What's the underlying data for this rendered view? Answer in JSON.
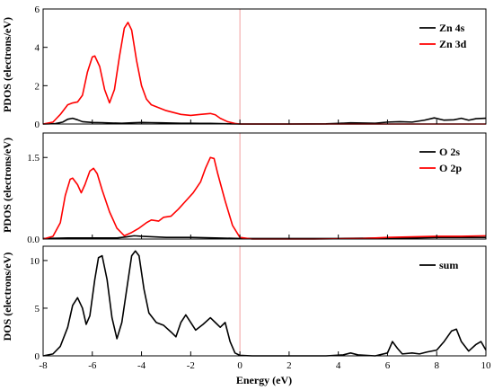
{
  "chart_data": {
    "type": "line",
    "xlabel": "Energy (eV)",
    "xlim": [
      -8,
      10
    ],
    "x_ticks": [
      "-8",
      "-6",
      "-4",
      "-2",
      "0",
      "2",
      "4",
      "6",
      "8",
      "10"
    ],
    "fermi_level": 0,
    "panels": [
      {
        "ylabel": "PDOS (electrons/eV)",
        "ylim": [
          0,
          6
        ],
        "y_ticks": [
          "0",
          "2",
          "4",
          "6"
        ],
        "legend_position": "top-right",
        "series": [
          {
            "name": "Zn 4s",
            "color": "#000000",
            "points": [
              [
                -8,
                0
              ],
              [
                -7.5,
                0.02
              ],
              [
                -7.2,
                0.1
              ],
              [
                -7.0,
                0.25
              ],
              [
                -6.8,
                0.3
              ],
              [
                -6.6,
                0.22
              ],
              [
                -6.4,
                0.12
              ],
              [
                -6.0,
                0.08
              ],
              [
                -5.6,
                0.07
              ],
              [
                -5.2,
                0.05
              ],
              [
                -4.8,
                0.04
              ],
              [
                -4.4,
                0.06
              ],
              [
                -4.0,
                0.08
              ],
              [
                -3.6,
                0.07
              ],
              [
                -3.2,
                0.06
              ],
              [
                -2.8,
                0.05
              ],
              [
                -2.4,
                0.04
              ],
              [
                -2.0,
                0.04
              ],
              [
                -1.6,
                0.03
              ],
              [
                -1.2,
                0.03
              ],
              [
                -0.8,
                0.02
              ],
              [
                -0.4,
                0.01
              ],
              [
                0,
                0
              ],
              [
                2,
                0
              ],
              [
                3.5,
                0.01
              ],
              [
                4.0,
                0.03
              ],
              [
                4.5,
                0.06
              ],
              [
                5.0,
                0.05
              ],
              [
                5.5,
                0.04
              ],
              [
                6.0,
                0.1
              ],
              [
                6.5,
                0.12
              ],
              [
                7.0,
                0.1
              ],
              [
                7.5,
                0.2
              ],
              [
                7.9,
                0.32
              ],
              [
                8.3,
                0.2
              ],
              [
                8.7,
                0.22
              ],
              [
                9.0,
                0.3
              ],
              [
                9.3,
                0.2
              ],
              [
                9.6,
                0.28
              ],
              [
                10,
                0.3
              ]
            ]
          },
          {
            "name": "Zn 3d",
            "color": "#ff0000",
            "points": [
              [
                -8,
                0
              ],
              [
                -7.6,
                0.1
              ],
              [
                -7.3,
                0.5
              ],
              [
                -7.0,
                1.0
              ],
              [
                -6.8,
                1.1
              ],
              [
                -6.6,
                1.15
              ],
              [
                -6.4,
                1.5
              ],
              [
                -6.2,
                2.7
              ],
              [
                -6.0,
                3.5
              ],
              [
                -5.9,
                3.55
              ],
              [
                -5.7,
                3.0
              ],
              [
                -5.5,
                1.8
              ],
              [
                -5.3,
                1.1
              ],
              [
                -5.1,
                1.8
              ],
              [
                -4.9,
                3.5
              ],
              [
                -4.7,
                5.0
              ],
              [
                -4.55,
                5.3
              ],
              [
                -4.4,
                4.9
              ],
              [
                -4.2,
                3.3
              ],
              [
                -4.0,
                2.0
              ],
              [
                -3.8,
                1.3
              ],
              [
                -3.6,
                1.0
              ],
              [
                -3.3,
                0.85
              ],
              [
                -3.0,
                0.7
              ],
              [
                -2.7,
                0.6
              ],
              [
                -2.4,
                0.5
              ],
              [
                -2.0,
                0.45
              ],
              [
                -1.6,
                0.5
              ],
              [
                -1.2,
                0.55
              ],
              [
                -1.0,
                0.48
              ],
              [
                -0.8,
                0.3
              ],
              [
                -0.5,
                0.12
              ],
              [
                -0.2,
                0.03
              ],
              [
                0,
                0
              ],
              [
                10,
                0
              ]
            ]
          }
        ]
      },
      {
        "ylabel": "PDOS (electrons/eV)",
        "ylim": [
          0,
          1.95
        ],
        "y_ticks": [
          "0.0",
          "1.5"
        ],
        "legend_position": "top-right",
        "series": [
          {
            "name": "O 2s",
            "color": "#000000",
            "points": [
              [
                -8,
                0.01
              ],
              [
                -7.0,
                0.02
              ],
              [
                -6.0,
                0.02
              ],
              [
                -5.0,
                0.02
              ],
              [
                -4.6,
                0.04
              ],
              [
                -4.3,
                0.06
              ],
              [
                -4.0,
                0.05
              ],
              [
                -3.5,
                0.04
              ],
              [
                -3.0,
                0.03
              ],
              [
                -2.0,
                0.03
              ],
              [
                -1.0,
                0.02
              ],
              [
                0,
                0.01
              ],
              [
                2,
                0.01
              ],
              [
                4,
                0.01
              ],
              [
                6,
                0.02
              ],
              [
                7,
                0.02
              ],
              [
                8,
                0.03
              ],
              [
                9,
                0.03
              ],
              [
                10,
                0.03
              ]
            ]
          },
          {
            "name": "O 2p",
            "color": "#ff0000",
            "points": [
              [
                -8,
                0
              ],
              [
                -7.6,
                0.05
              ],
              [
                -7.3,
                0.3
              ],
              [
                -7.1,
                0.8
              ],
              [
                -6.9,
                1.1
              ],
              [
                -6.8,
                1.12
              ],
              [
                -6.6,
                1.0
              ],
              [
                -6.45,
                0.85
              ],
              [
                -6.3,
                1.0
              ],
              [
                -6.1,
                1.25
              ],
              [
                -5.95,
                1.3
              ],
              [
                -5.8,
                1.2
              ],
              [
                -5.6,
                0.9
              ],
              [
                -5.3,
                0.5
              ],
              [
                -5.0,
                0.2
              ],
              [
                -4.7,
                0.06
              ],
              [
                -4.4,
                0.12
              ],
              [
                -4.1,
                0.2
              ],
              [
                -3.8,
                0.3
              ],
              [
                -3.6,
                0.35
              ],
              [
                -3.3,
                0.33
              ],
              [
                -3.1,
                0.4
              ],
              [
                -2.8,
                0.42
              ],
              [
                -2.5,
                0.55
              ],
              [
                -2.2,
                0.7
              ],
              [
                -1.9,
                0.85
              ],
              [
                -1.6,
                1.05
              ],
              [
                -1.4,
                1.3
              ],
              [
                -1.2,
                1.5
              ],
              [
                -1.05,
                1.48
              ],
              [
                -0.9,
                1.2
              ],
              [
                -0.6,
                0.7
              ],
              [
                -0.3,
                0.25
              ],
              [
                0,
                0.03
              ],
              [
                0.5,
                0
              ],
              [
                3,
                0
              ],
              [
                5,
                0.01
              ],
              [
                6,
                0.03
              ],
              [
                7,
                0.04
              ],
              [
                8,
                0.05
              ],
              [
                9,
                0.05
              ],
              [
                10,
                0.06
              ]
            ]
          }
        ]
      },
      {
        "ylabel": "DOS (electrons/eV)",
        "ylim": [
          0,
          11.5
        ],
        "y_ticks": [
          "0",
          "5",
          "10"
        ],
        "legend_position": "top-right",
        "series": [
          {
            "name": "sum",
            "color": "#000000",
            "points": [
              [
                -8,
                0
              ],
              [
                -7.6,
                0.2
              ],
              [
                -7.3,
                1.0
              ],
              [
                -7.0,
                3.0
              ],
              [
                -6.8,
                5.3
              ],
              [
                -6.6,
                6.1
              ],
              [
                -6.4,
                5.0
              ],
              [
                -6.25,
                3.3
              ],
              [
                -6.1,
                4.2
              ],
              [
                -5.9,
                8.0
              ],
              [
                -5.75,
                10.3
              ],
              [
                -5.6,
                10.5
              ],
              [
                -5.4,
                8.0
              ],
              [
                -5.2,
                4.0
              ],
              [
                -5.0,
                1.8
              ],
              [
                -4.8,
                3.5
              ],
              [
                -4.6,
                7.0
              ],
              [
                -4.4,
                10.5
              ],
              [
                -4.25,
                11.0
              ],
              [
                -4.1,
                10.5
              ],
              [
                -3.9,
                7.0
              ],
              [
                -3.7,
                4.5
              ],
              [
                -3.4,
                3.5
              ],
              [
                -3.1,
                3.2
              ],
              [
                -2.8,
                2.5
              ],
              [
                -2.6,
                2.0
              ],
              [
                -2.4,
                3.5
              ],
              [
                -2.2,
                4.3
              ],
              [
                -2.0,
                3.5
              ],
              [
                -1.8,
                2.7
              ],
              [
                -1.5,
                3.3
              ],
              [
                -1.2,
                4.0
              ],
              [
                -1.0,
                3.5
              ],
              [
                -0.8,
                3.0
              ],
              [
                -0.6,
                3.5
              ],
              [
                -0.4,
                1.5
              ],
              [
                -0.2,
                0.3
              ],
              [
                0,
                0.05
              ],
              [
                0.5,
                0
              ],
              [
                3.5,
                0
              ],
              [
                4.2,
                0.1
              ],
              [
                4.5,
                0.3
              ],
              [
                4.8,
                0.1
              ],
              [
                5.5,
                0
              ],
              [
                6.0,
                0.3
              ],
              [
                6.2,
                1.5
              ],
              [
                6.4,
                0.8
              ],
              [
                6.6,
                0.2
              ],
              [
                7.0,
                0.3
              ],
              [
                7.3,
                0.2
              ],
              [
                7.6,
                0.4
              ],
              [
                8.0,
                0.6
              ],
              [
                8.3,
                1.5
              ],
              [
                8.6,
                2.6
              ],
              [
                8.8,
                2.8
              ],
              [
                9.0,
                1.5
              ],
              [
                9.3,
                0.5
              ],
              [
                9.6,
                1.2
              ],
              [
                9.8,
                1.5
              ],
              [
                10,
                0.6
              ]
            ]
          }
        ]
      }
    ]
  }
}
